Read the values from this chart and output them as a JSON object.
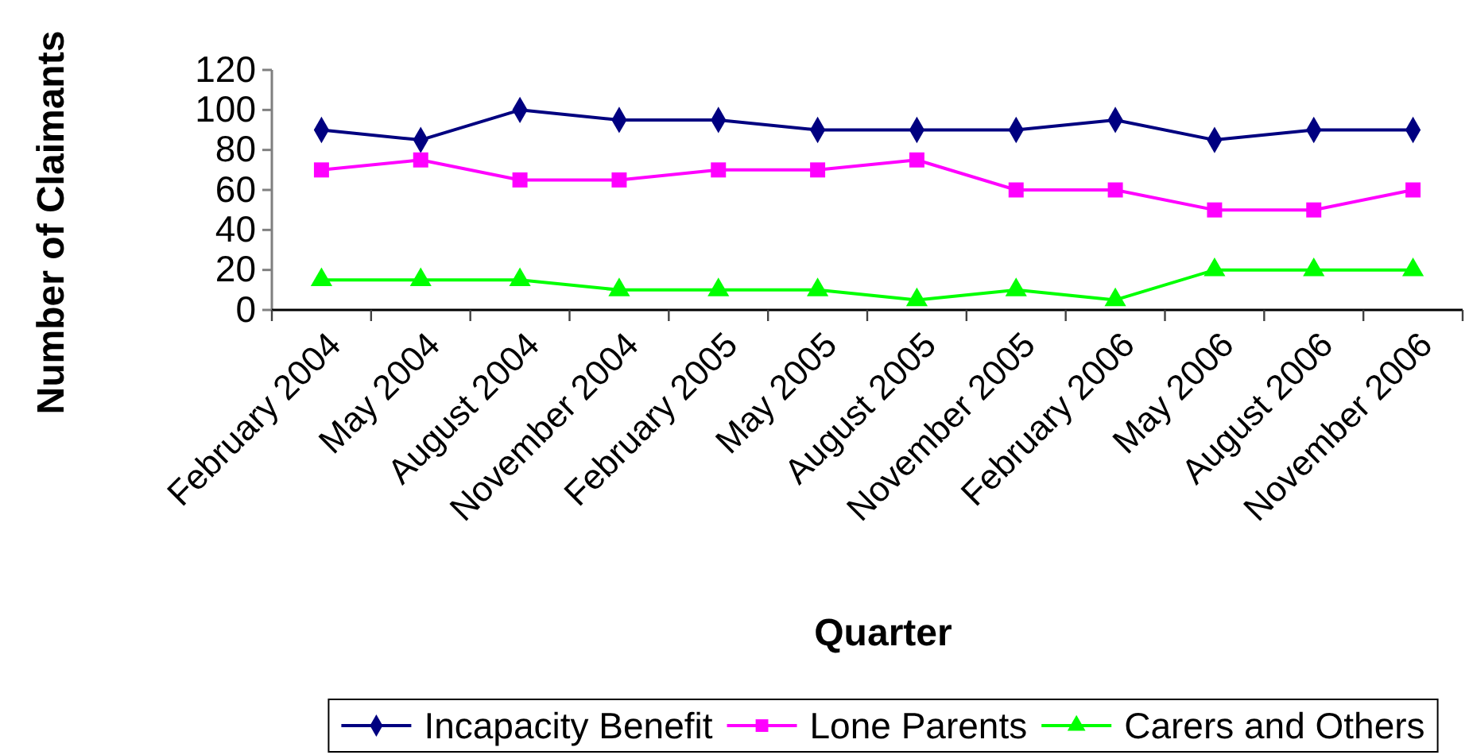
{
  "chart_data": {
    "type": "line",
    "xlabel": "Quarter",
    "ylabel": "Number of Claimants",
    "categories": [
      "February 2004",
      "May 2004",
      "August 2004",
      "November 2004",
      "February 2005",
      "May 2005",
      "August 2005",
      "November 2005",
      "February 2006",
      "May 2006",
      "August 2006",
      "November 2006"
    ],
    "series": [
      {
        "name": "Incapacity Benefit",
        "color": "#000080",
        "marker": "diamond",
        "values": [
          90,
          85,
          100,
          95,
          95,
          90,
          90,
          90,
          95,
          85,
          90,
          90
        ]
      },
      {
        "name": "Lone Parents",
        "color": "#ff00ff",
        "marker": "square",
        "values": [
          70,
          75,
          65,
          65,
          70,
          70,
          75,
          60,
          60,
          50,
          50,
          60
        ]
      },
      {
        "name": "Carers and Others",
        "color": "#00ff00",
        "marker": "triangle",
        "values": [
          15,
          15,
          15,
          10,
          10,
          10,
          5,
          10,
          5,
          20,
          20,
          20
        ]
      }
    ],
    "ylim": [
      0,
      120
    ],
    "yticks": [
      0,
      20,
      40,
      60,
      80,
      100,
      120
    ],
    "legend": "bottom",
    "line_style": "solid"
  }
}
